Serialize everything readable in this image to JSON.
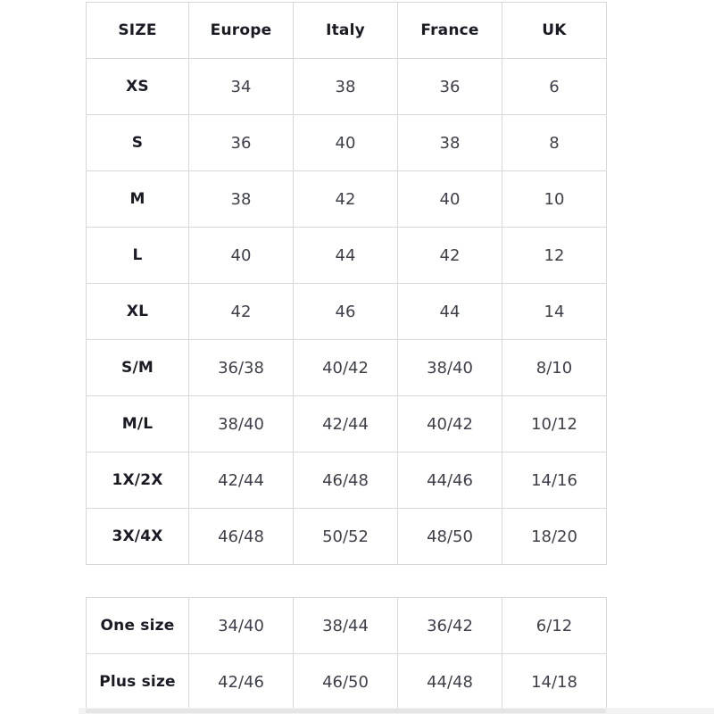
{
  "chart_data": [
    {
      "type": "table",
      "name": "clothing-size-conversion-chart",
      "headers": [
        "SIZE",
        "Europe",
        "Italy",
        "France",
        "UK"
      ],
      "rows": [
        {
          "label": "XS",
          "values": [
            "34",
            "38",
            "36",
            "6"
          ]
        },
        {
          "label": "S",
          "values": [
            "36",
            "40",
            "38",
            "8"
          ]
        },
        {
          "label": "M",
          "values": [
            "38",
            "42",
            "40",
            "10"
          ]
        },
        {
          "label": "L",
          "values": [
            "40",
            "44",
            "42",
            "12"
          ]
        },
        {
          "label": "XL",
          "values": [
            "42",
            "46",
            "44",
            "14"
          ]
        },
        {
          "label": "S/M",
          "values": [
            "36/38",
            "40/42",
            "38/40",
            "8/10"
          ]
        },
        {
          "label": "M/L",
          "values": [
            "38/40",
            "42/44",
            "40/42",
            "10/12"
          ]
        },
        {
          "label": "1X/2X",
          "values": [
            "42/44",
            "46/48",
            "44/46",
            "14/16"
          ]
        },
        {
          "label": "3X/4X",
          "values": [
            "46/48",
            "50/52",
            "48/50",
            "18/20"
          ]
        }
      ]
    },
    {
      "type": "table",
      "name": "special-sizes-chart",
      "headers": [],
      "rows": [
        {
          "label": "One size",
          "values": [
            "34/40",
            "38/44",
            "36/42",
            "6/12"
          ]
        },
        {
          "label": "Plus size",
          "values": [
            "42/46",
            "46/50",
            "44/48",
            "14/18"
          ]
        }
      ]
    }
  ],
  "colors": {
    "background": "#ffffff",
    "border": "#d8d8d8",
    "heading_text": "#1b1b26",
    "value_text": "#3f3f4c",
    "bottom_strip_track": "#f2f2f2",
    "bottom_strip_thumb": "#e5e5e5"
  }
}
